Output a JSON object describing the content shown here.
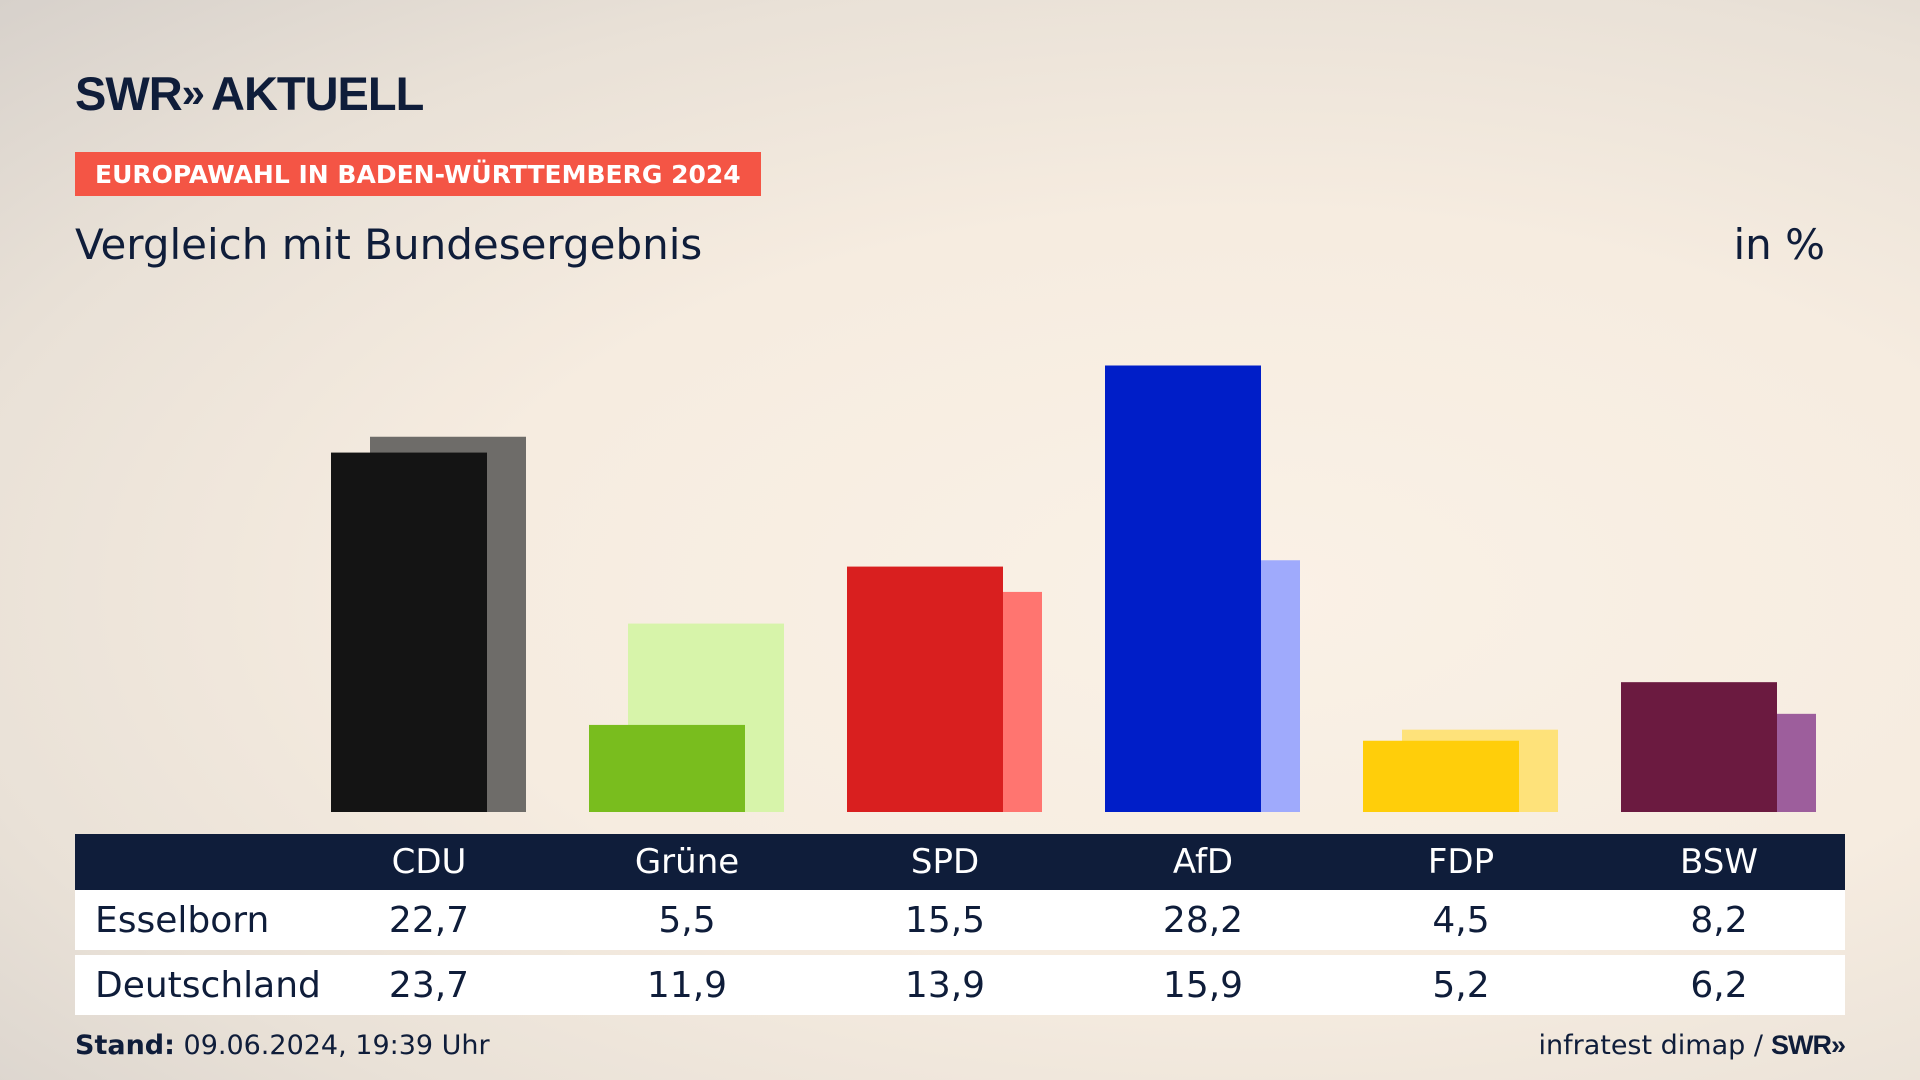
{
  "header": {
    "logo_left": "SWR",
    "logo_chevrons": "»",
    "logo_right": "AKTUELL",
    "banner": "EUROPAWAHL IN BADEN-WÜRTTEMBERG 2024",
    "subtitle": "Vergleich mit Bundesergebnis",
    "unit": "in %"
  },
  "chart_data": {
    "type": "bar",
    "categories": [
      "CDU",
      "Grüne",
      "SPD",
      "AfD",
      "FDP",
      "BSW"
    ],
    "series": [
      {
        "name": "Esselborn",
        "values": [
          22.7,
          5.5,
          15.5,
          28.2,
          4.5,
          8.2
        ]
      },
      {
        "name": "Deutschland",
        "values": [
          23.7,
          11.9,
          13.9,
          15.9,
          5.2,
          6.2
        ]
      }
    ],
    "value_labels": {
      "Esselborn": [
        "22,7",
        "5,5",
        "15,5",
        "28,2",
        "4,5",
        "8,2"
      ],
      "Deutschland": [
        "23,7",
        "11,9",
        "13,9",
        "15,9",
        "5,2",
        "6,2"
      ]
    },
    "colors": {
      "primary": [
        "#141414",
        "#79bd1e",
        "#d91f1f",
        "#001ec8",
        "#ffce0a",
        "#6b1a40"
      ],
      "secondary": [
        "#6e6c69",
        "#d7f4aa",
        "#ff7570",
        "#9faafc",
        "#fee27a",
        "#9d5e9c"
      ]
    },
    "ylim": [
      0,
      30
    ]
  },
  "footer": {
    "stand_label": "Stand:",
    "stand_value": "09.06.2024, 19:39 Uhr",
    "source": "infratest dimap /",
    "source_logo": "SWR»"
  }
}
